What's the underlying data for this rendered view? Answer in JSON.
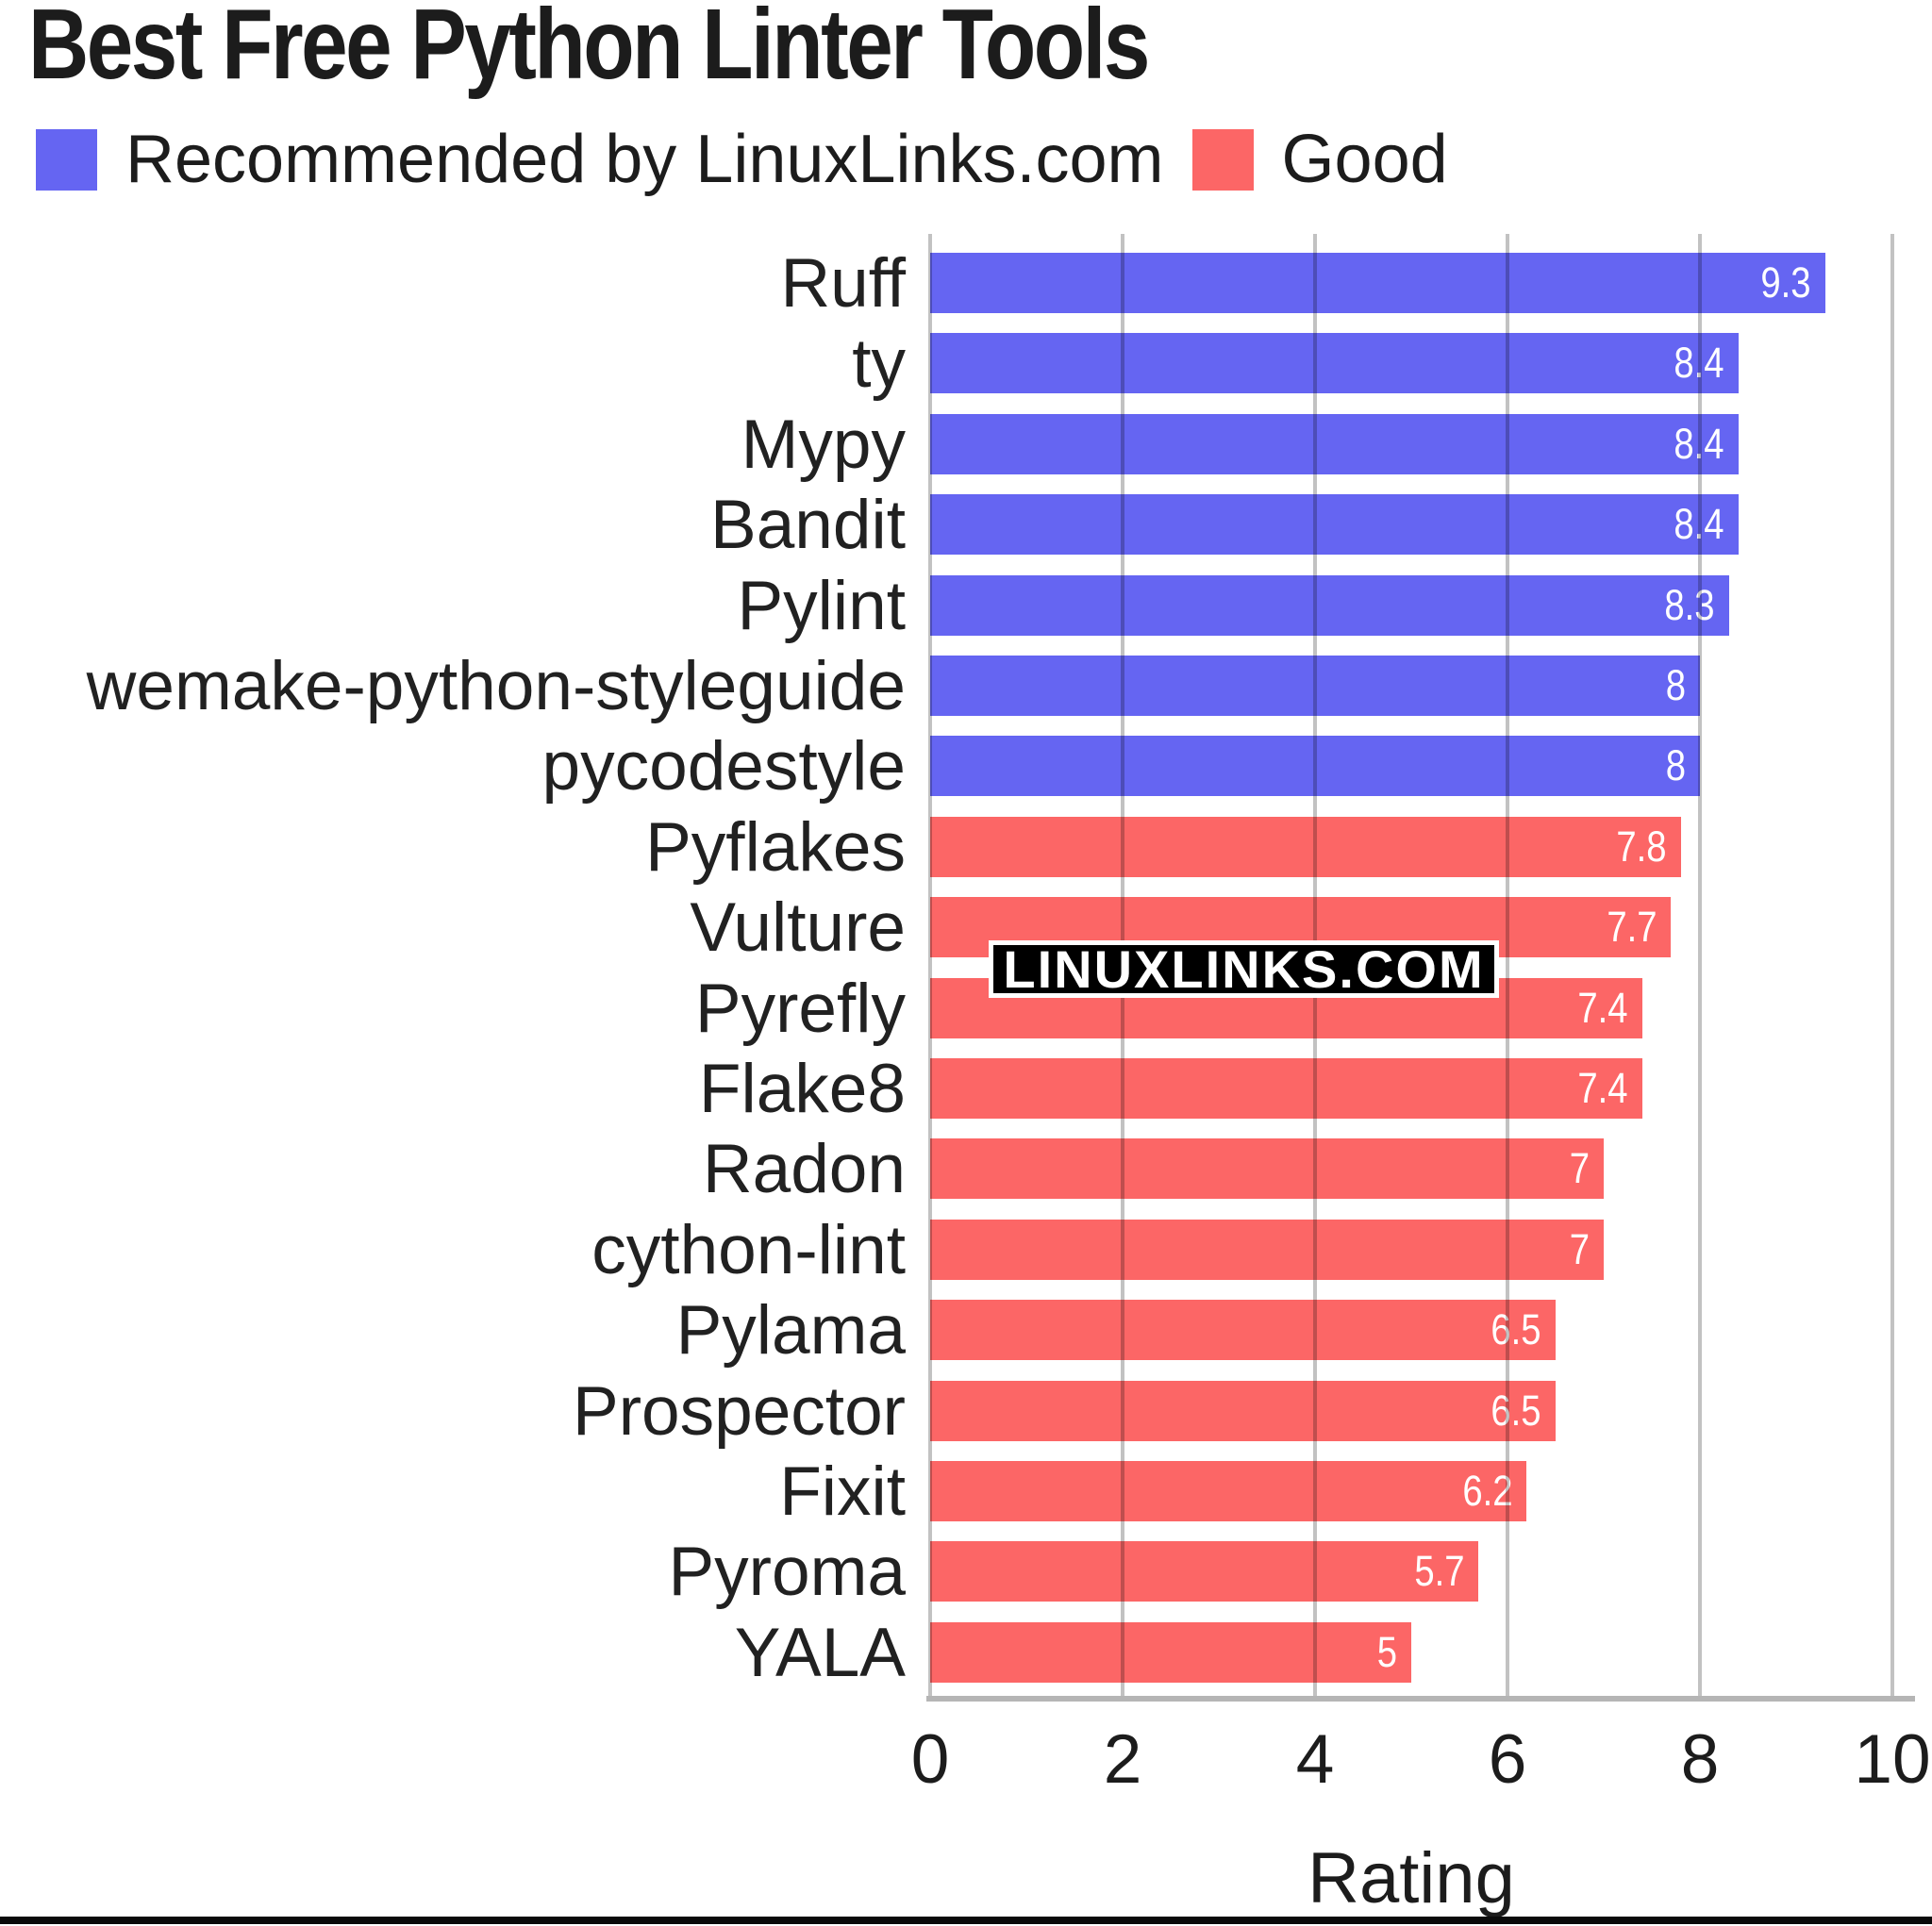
{
  "title": "Best Free Python Linter Tools",
  "watermark": {
    "text": "LINUXLINKS.COM"
  },
  "colors": {
    "recommended": "#6565f2",
    "good": "#fc6666",
    "gridline": "#c2c2c2",
    "axis_line": "#b5b5b5",
    "value_label": "#ffffff",
    "text": "#1c1c1c",
    "watermark_bg": "#000000",
    "watermark_text": "#ffffff",
    "bottom_rule": "#0a0a0a"
  },
  "chart_data": {
    "type": "bar",
    "orientation": "horizontal",
    "title": "Best Free Python Linter Tools",
    "xlabel": "Rating",
    "ylabel": "",
    "xlim": [
      0,
      10
    ],
    "xticks": [
      "0",
      "2",
      "4",
      "6",
      "8",
      "10"
    ],
    "grid": "vertical-on",
    "legend_position": "top",
    "groups": [
      {
        "name": "Recommended by LinuxLinks.com",
        "color": "#6565f2"
      },
      {
        "name": "Good",
        "color": "#fc6666"
      }
    ],
    "categories": [
      "Ruff",
      "ty",
      "Mypy",
      "Bandit",
      "Pylint",
      "wemake-python-styleguide",
      "pycodestyle",
      "Pyflakes",
      "Vulture",
      "Pyrefly",
      "Flake8",
      "Radon",
      "cython-lint",
      "Pylama",
      "Prospector",
      "Fixit",
      "Pyroma",
      "YALA"
    ],
    "bars": [
      {
        "label": "Ruff",
        "value": 9.3,
        "value_label": "9.3",
        "group": 0
      },
      {
        "label": "ty",
        "value": 8.4,
        "value_label": "8.4",
        "group": 0
      },
      {
        "label": "Mypy",
        "value": 8.4,
        "value_label": "8.4",
        "group": 0
      },
      {
        "label": "Bandit",
        "value": 8.4,
        "value_label": "8.4",
        "group": 0
      },
      {
        "label": "Pylint",
        "value": 8.3,
        "value_label": "8.3",
        "group": 0
      },
      {
        "label": "wemake-python-styleguide",
        "value": 8,
        "value_label": "8",
        "group": 0
      },
      {
        "label": "pycodestyle",
        "value": 8,
        "value_label": "8",
        "group": 0
      },
      {
        "label": "Pyflakes",
        "value": 7.8,
        "value_label": "7.8",
        "group": 1
      },
      {
        "label": "Vulture",
        "value": 7.7,
        "value_label": "7.7",
        "group": 1
      },
      {
        "label": "Pyrefly",
        "value": 7.4,
        "value_label": "7.4",
        "group": 1
      },
      {
        "label": "Flake8",
        "value": 7.4,
        "value_label": "7.4",
        "group": 1
      },
      {
        "label": "Radon",
        "value": 7,
        "value_label": "7",
        "group": 1
      },
      {
        "label": "cython-lint",
        "value": 7,
        "value_label": "7",
        "group": 1
      },
      {
        "label": "Pylama",
        "value": 6.5,
        "value_label": "6.5",
        "group": 1
      },
      {
        "label": "Prospector",
        "value": 6.5,
        "value_label": "6.5",
        "group": 1
      },
      {
        "label": "Fixit",
        "value": 6.2,
        "value_label": "6.2",
        "group": 1
      },
      {
        "label": "Pyroma",
        "value": 5.7,
        "value_label": "5.7",
        "group": 1
      },
      {
        "label": "YALA",
        "value": 5,
        "value_label": "5",
        "group": 1
      }
    ]
  },
  "layout_note": "ratings bar chart"
}
